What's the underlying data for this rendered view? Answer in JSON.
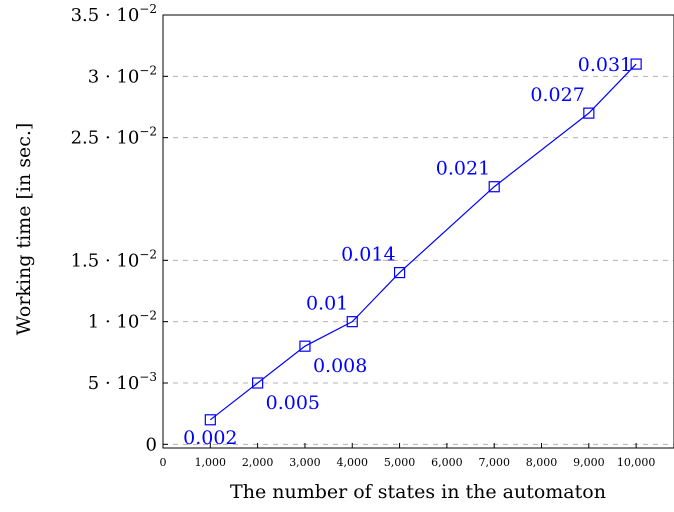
{
  "chart_data": {
    "type": "line",
    "title": "",
    "xlabel": "The number of states in the automaton",
    "ylabel": "Working time [in sec.]",
    "xlim": [
      0,
      10800
    ],
    "ylim": [
      -0.0003,
      0.035
    ],
    "grid": "horizontal dashed",
    "x_ticks": [
      {
        "value": 0,
        "label": "0"
      },
      {
        "value": 1000,
        "label": "1,000"
      },
      {
        "value": 2000,
        "label": "2,000"
      },
      {
        "value": 3000,
        "label": "3,000"
      },
      {
        "value": 4000,
        "label": "4,000"
      },
      {
        "value": 5000,
        "label": "5,000"
      },
      {
        "value": 6000,
        "label": "6,000"
      },
      {
        "value": 7000,
        "label": "7,000"
      },
      {
        "value": 8000,
        "label": "8,000"
      },
      {
        "value": 9000,
        "label": "9,000"
      },
      {
        "value": 10000,
        "label": "10,000"
      }
    ],
    "y_ticks": [
      {
        "value": 0,
        "mant": "0",
        "exp": ""
      },
      {
        "value": 0.005,
        "mant": "5 · 10",
        "exp": "−3"
      },
      {
        "value": 0.01,
        "mant": "1 · 10",
        "exp": "−2"
      },
      {
        "value": 0.015,
        "mant": "1.5 · 10",
        "exp": "−2"
      },
      {
        "value": 0.025,
        "mant": "2.5 · 10",
        "exp": "−2"
      },
      {
        "value": 0.03,
        "mant": "3 · 10",
        "exp": "−2"
      },
      {
        "value": 0.035,
        "mant": "3.5 · 10",
        "exp": "−2"
      }
    ],
    "series": [
      {
        "color": "#0000ff",
        "marker": "square",
        "x": [
          1000,
          2000,
          3000,
          4000,
          5000,
          7000,
          9000,
          10000
        ],
        "y": [
          0.002,
          0.005,
          0.008,
          0.01,
          0.014,
          0.021,
          0.027,
          0.031
        ],
        "labels": [
          "0.002",
          "0.005",
          "0.008",
          "0.01",
          "0.014",
          "0.021",
          "0.027",
          "0.031"
        ],
        "label_positions": [
          "below",
          "below-right",
          "below-right",
          "above-left",
          "above-left",
          "above-left",
          "above-left",
          "left"
        ]
      }
    ]
  }
}
